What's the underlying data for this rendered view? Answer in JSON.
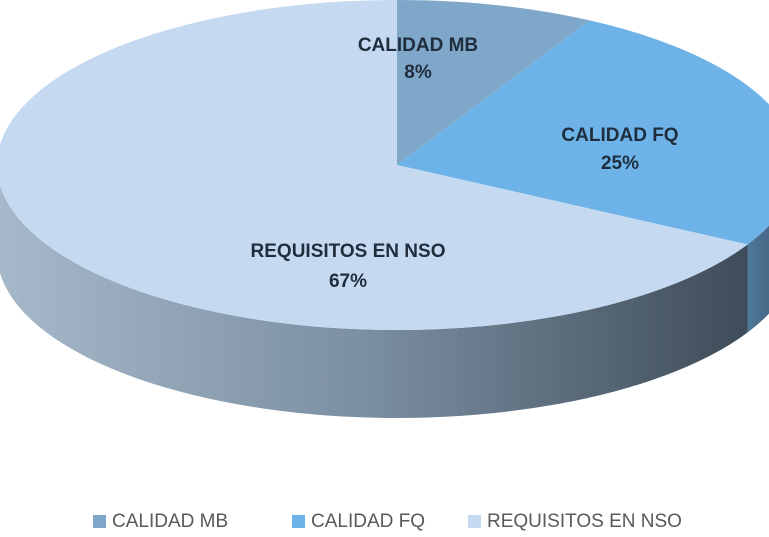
{
  "chart_data": {
    "type": "pie",
    "categories": [
      "CALIDAD MB",
      "CALIDAD FQ",
      "REQUISITOS EN NSO"
    ],
    "values": [
      8,
      25,
      67
    ],
    "value_labels": [
      "8%",
      "25%",
      "67%"
    ],
    "colors": [
      "#7fa7c9",
      "#6db3e8",
      "#c5daf0"
    ],
    "legend": "bottom"
  }
}
